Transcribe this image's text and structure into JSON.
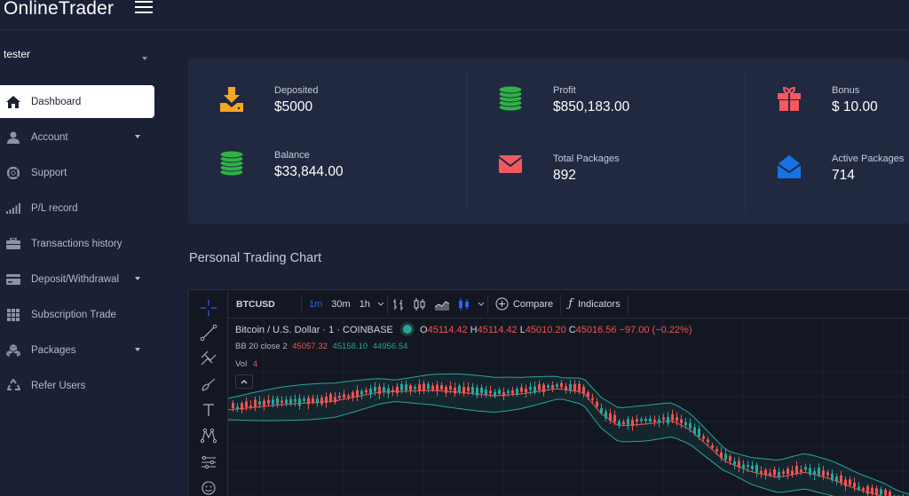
{
  "header": {
    "brand": "OnlineTrader"
  },
  "sidebar": {
    "user": "tester",
    "items": [
      {
        "label": "Dashboard",
        "icon": "home-icon",
        "active": true,
        "has_caret": false
      },
      {
        "label": "Account",
        "icon": "user-icon",
        "active": false,
        "has_caret": true
      },
      {
        "label": "Support",
        "icon": "support-icon",
        "active": false,
        "has_caret": false
      },
      {
        "label": "P/L record",
        "icon": "signal-icon",
        "active": false,
        "has_caret": false
      },
      {
        "label": "Transactions history",
        "icon": "briefcase-icon",
        "active": false,
        "has_caret": false
      },
      {
        "label": "Deposit/Withdrawal",
        "icon": "credit-card-icon",
        "active": false,
        "has_caret": true
      },
      {
        "label": "Subscription Trade",
        "icon": "grid-icon",
        "active": false,
        "has_caret": false
      },
      {
        "label": "Packages",
        "icon": "cubes-icon",
        "active": false,
        "has_caret": true
      },
      {
        "label": "Refer Users",
        "icon": "recycle-icon",
        "active": false,
        "has_caret": false
      }
    ]
  },
  "stats": {
    "deposited": {
      "label": "Deposited",
      "value": "$5000",
      "icon": "download-icon",
      "color": "#f6a623"
    },
    "profit": {
      "label": "Profit",
      "value": "$850,183.00",
      "icon": "coins-icon",
      "color": "#2fb344"
    },
    "bonus": {
      "label": "Bonus",
      "value": "$ 10.00",
      "icon": "gift-icon",
      "color": "#f25961"
    },
    "balance": {
      "label": "Balance",
      "value": "$33,844.00",
      "icon": "coins-icon",
      "color": "#2fb344"
    },
    "total_packages": {
      "label": "Total Packages",
      "value": "892",
      "icon": "envelope-icon",
      "color": "#f25961"
    },
    "active_packages": {
      "label": "Active Packages",
      "value": "714",
      "icon": "envelope-open-icon",
      "color": "#1572e8"
    }
  },
  "chart_section": {
    "title": "Personal Trading Chart"
  },
  "trading_chart": {
    "symbol": "BTCUSD",
    "timeframes": [
      "1m",
      "30m",
      "1h"
    ],
    "active_timeframe": "1m",
    "compare_label": "Compare",
    "indicators_label": "Indicators",
    "title": "Bitcoin / U.S. Dollar · 1 · COINBASE",
    "ohlc": {
      "o": "O45114.42",
      "h": "H45114.42",
      "l": "L45010.20",
      "c": "C45016.56",
      "change": "−97.00 (−0.22%)"
    },
    "bb_label": "BB 20 close 2",
    "bb_values": [
      "45057.32",
      "45158.10",
      "44956.54"
    ],
    "vol_label": "Vol",
    "vol_value": "4",
    "colors": {
      "up": "#26a69a",
      "down": "#ef5350",
      "band": "#26a69a",
      "basis": "#ef5350"
    }
  }
}
